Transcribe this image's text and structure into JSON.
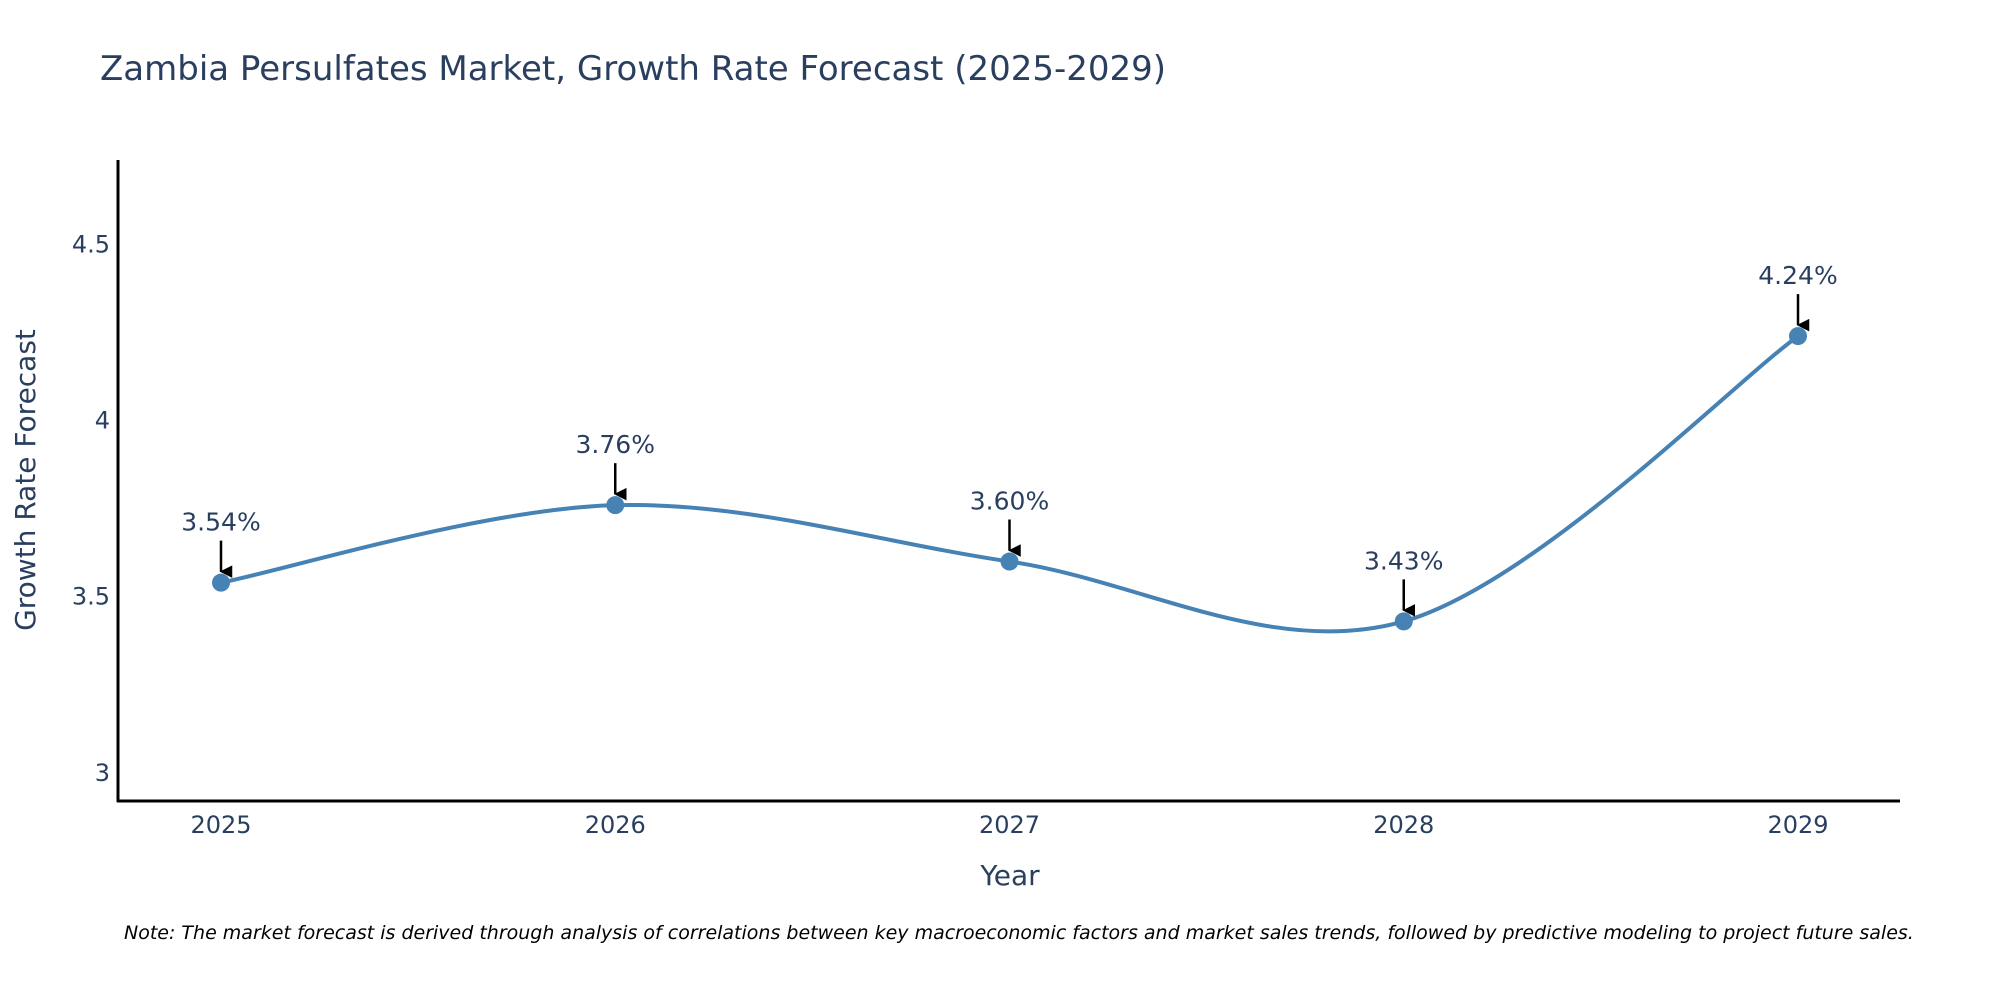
{
  "chart_data": {
    "type": "line",
    "title": "Zambia Persulfates Market, Growth Rate Forecast (2025-2029)",
    "xlabel": "Year",
    "ylabel": "Growth Rate Forecast",
    "categories": [
      "2025",
      "2026",
      "2027",
      "2028",
      "2029"
    ],
    "values": [
      3.54,
      3.76,
      3.6,
      3.43,
      4.24
    ],
    "data_labels": [
      "3.54%",
      "3.76%",
      "3.60%",
      "3.43%",
      "4.24%"
    ],
    "yticks": [
      3,
      3.5,
      4,
      4.5
    ],
    "ytick_labels": [
      "3",
      "3.5",
      "4",
      "4.5"
    ],
    "ylim": [
      2.92,
      4.74
    ],
    "grid": false,
    "line_color": "#4682B4",
    "marker_color": "#4682B4",
    "arrow_color": "#000000",
    "note": "Note: The market forecast is derived through analysis of correlations between key macroeconomic factors and market sales trends, followed by predictive modeling to project future sales."
  }
}
